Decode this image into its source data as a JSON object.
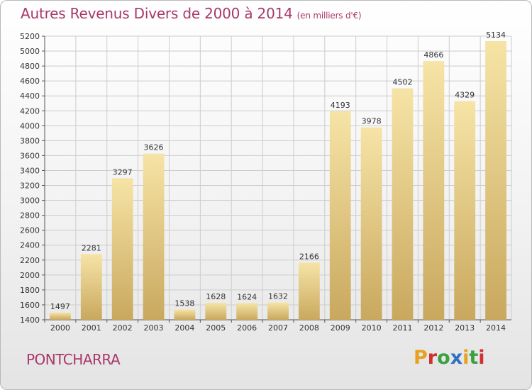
{
  "header": {
    "title": "Autres Revenus Divers de 2000 à 2014",
    "subtitle": "(en milliers d'€)"
  },
  "footer": {
    "place": "PONTCHARRA",
    "logo_text": "Proxiti",
    "logo_colors": [
      "#e8a020",
      "#d03030",
      "#3aa040",
      "#3070c0",
      "#e8a020",
      "#3aa040",
      "#d03030"
    ]
  },
  "colors": {
    "title": "#a8386a",
    "bar_light": "#f6e4a6",
    "bar_dark": "#c9a85e",
    "grid": "#cccccc"
  },
  "chart_data": {
    "type": "bar",
    "categories": [
      "2000",
      "2001",
      "2002",
      "2003",
      "2004",
      "2005",
      "2006",
      "2007",
      "2008",
      "2009",
      "2010",
      "2011",
      "2012",
      "2013",
      "2014"
    ],
    "values": [
      1497,
      2281,
      3297,
      3626,
      1538,
      1628,
      1624,
      1632,
      2166,
      4193,
      3978,
      4502,
      4866,
      4329,
      5134
    ],
    "title": "Autres Revenus Divers de 2000 à 2014",
    "subtitle": "(en milliers d'€)",
    "ylim": [
      1400,
      5200
    ],
    "yticks": [
      1400,
      1600,
      1800,
      2000,
      2200,
      2400,
      2600,
      2800,
      3000,
      3200,
      3400,
      3600,
      3800,
      4000,
      4200,
      4400,
      4600,
      4800,
      5000,
      5200
    ],
    "grid": true,
    "data_labels": true
  }
}
